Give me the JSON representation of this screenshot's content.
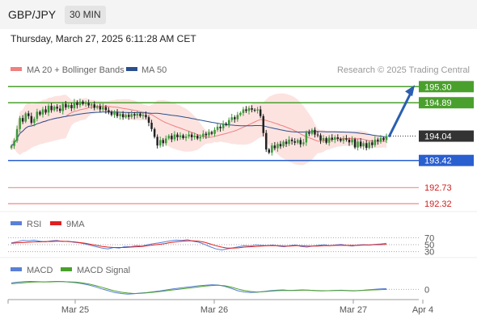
{
  "header": {
    "symbol": "GBP/JPY",
    "timeframe": "30 MIN"
  },
  "datetime": "Thursday, March 27, 2025 6:11:28 AM CET",
  "legend": {
    "ma20": {
      "label": "MA 20 + Bollinger Bands",
      "color": "#f08080"
    },
    "ma50": {
      "label": "MA 50",
      "color": "#2a4f8f"
    },
    "credit": "Research © 2025 Trading Central"
  },
  "rsi_legend": {
    "rsi": {
      "label": "RSI",
      "color": "#5a7fd6"
    },
    "ma9": {
      "label": "9MA",
      "color": "#e02020"
    }
  },
  "macd_legend": {
    "macd": {
      "label": "MACD",
      "color": "#5a7fd6"
    },
    "signal": {
      "label": "MACD Signal",
      "color": "#4aa02c"
    }
  },
  "chart_data": {
    "type": "candlestick",
    "price_range": [
      192.2,
      195.45
    ],
    "levels": [
      {
        "value": 195.3,
        "label": "195.30",
        "kind": "resistance",
        "color": "#4aa02c"
      },
      {
        "value": 194.89,
        "label": "194.89",
        "kind": "resistance",
        "color": "#4aa02c"
      },
      {
        "value": 194.04,
        "label": "194.04",
        "kind": "last",
        "color": "#333333"
      },
      {
        "value": 193.42,
        "label": "193.42",
        "kind": "pivot",
        "color": "#2a5fd0"
      },
      {
        "value": 192.73,
        "label": "192.73",
        "kind": "support",
        "color": "#e03030"
      },
      {
        "value": 192.32,
        "label": "192.32",
        "kind": "support",
        "color": "#e03030"
      }
    ],
    "target_arrow": {
      "from": 194.04,
      "to": 195.3,
      "color": "#2a5fb0"
    },
    "candles_close": [
      193.79,
      193.92,
      194.22,
      194.5,
      194.41,
      194.62,
      194.55,
      194.38,
      194.48,
      194.66,
      194.59,
      194.72,
      194.64,
      194.81,
      194.7,
      194.79,
      194.74,
      194.68,
      194.86,
      194.77,
      194.83,
      194.75,
      194.9,
      194.83,
      194.92,
      194.86,
      194.88,
      194.82,
      194.85,
      194.76,
      194.8,
      194.72,
      194.78,
      194.7,
      194.66,
      194.58,
      194.64,
      194.55,
      194.6,
      194.52,
      194.58,
      194.53,
      194.6,
      194.56,
      194.61,
      194.55,
      194.58,
      194.52,
      194.38,
      194.22,
      194.02,
      193.8,
      193.94,
      193.86,
      193.98,
      194.05,
      193.96,
      194.08,
      194.01,
      194.06,
      193.99,
      194.03,
      194.08,
      194.01,
      194.05,
      193.98,
      194.02,
      194.1,
      194.06,
      194.14,
      194.1,
      194.2,
      194.28,
      194.24,
      194.36,
      194.33,
      194.45,
      194.52,
      194.47,
      194.58,
      194.63,
      194.72,
      194.68,
      194.75,
      194.71,
      194.69,
      194.72,
      194.55,
      194.12,
      193.7,
      193.62,
      193.8,
      193.73,
      193.84,
      193.78,
      193.9,
      193.84,
      193.95,
      193.91,
      193.87,
      193.94,
      193.83,
      193.88,
      194.13,
      194.1,
      194.2,
      194.08,
      194.06,
      193.93,
      193.99,
      193.87,
      194.0,
      193.95,
      194.01,
      193.97,
      193.92,
      193.98,
      193.95,
      193.88,
      193.96,
      193.75,
      193.9,
      193.78,
      193.86,
      193.74,
      193.88,
      193.81,
      193.95,
      193.91,
      193.99,
      193.94,
      194.04
    ],
    "x_ticks": [
      {
        "label": "Mar 25",
        "index": 20
      },
      {
        "label": "Mar 26",
        "index": 64
      },
      {
        "label": "Mar 27",
        "index": 108
      },
      {
        "label": "Apr 4",
        "index": 130
      }
    ],
    "rsi": {
      "levels": [
        70,
        50,
        30
      ],
      "range": [
        20,
        80
      ],
      "rsi_values": [
        55,
        58,
        62,
        61,
        63,
        60,
        58,
        61,
        62,
        59,
        60,
        57,
        55,
        52,
        48,
        44,
        40,
        38,
        42,
        40,
        45,
        44,
        47,
        46,
        50,
        53,
        55,
        58,
        61,
        63,
        62,
        64,
        60,
        57,
        51,
        44,
        38,
        35,
        38,
        41,
        44,
        47,
        46,
        49,
        48,
        47,
        49,
        46,
        44,
        47,
        49,
        45,
        43,
        46,
        48,
        50,
        47,
        49,
        51,
        48,
        46,
        49,
        50,
        49,
        51,
        52,
        54
      ],
      "ma9_values": [
        54,
        55,
        56,
        57,
        58,
        58,
        59,
        59,
        60,
        60,
        59,
        58,
        56,
        54,
        51,
        48,
        45,
        43,
        42,
        42,
        42,
        43,
        44,
        45,
        47,
        49,
        51,
        53,
        56,
        58,
        60,
        61,
        61,
        60,
        57,
        52,
        47,
        43,
        40,
        40,
        41,
        43,
        44,
        45,
        46,
        47,
        47,
        47,
        46,
        46,
        47,
        47,
        46,
        46,
        46,
        47,
        47,
        48,
        48,
        48,
        48,
        48,
        49,
        49,
        50,
        50,
        51
      ]
    },
    "macd": {
      "levels": [
        0
      ],
      "macd_values": [
        0.25,
        0.28,
        0.3,
        0.31,
        0.3,
        0.29,
        0.3,
        0.31,
        0.3,
        0.28,
        0.26,
        0.22,
        0.17,
        0.1,
        0.02,
        -0.05,
        -0.12,
        -0.16,
        -0.18,
        -0.17,
        -0.14,
        -0.12,
        -0.09,
        -0.06,
        -0.02,
        0.02,
        0.05,
        0.08,
        0.11,
        0.14,
        0.16,
        0.18,
        0.17,
        0.12,
        0.04,
        -0.05,
        -0.1,
        -0.12,
        -0.11,
        -0.08,
        -0.05,
        -0.03,
        -0.02,
        -0.04,
        -0.03,
        -0.02,
        -0.03,
        -0.05,
        -0.06,
        -0.05,
        -0.04,
        -0.03,
        -0.05,
        -0.06,
        -0.04,
        -0.02,
        0.0,
        0.02,
        0.03
      ],
      "signal_values": [
        0.22,
        0.24,
        0.26,
        0.28,
        0.29,
        0.29,
        0.29,
        0.3,
        0.3,
        0.29,
        0.28,
        0.25,
        0.21,
        0.15,
        0.08,
        0.01,
        -0.06,
        -0.11,
        -0.14,
        -0.16,
        -0.15,
        -0.13,
        -0.11,
        -0.08,
        -0.05,
        -0.02,
        0.01,
        0.04,
        0.07,
        0.1,
        0.13,
        0.15,
        0.16,
        0.14,
        0.09,
        0.02,
        -0.04,
        -0.08,
        -0.1,
        -0.09,
        -0.07,
        -0.05,
        -0.04,
        -0.04,
        -0.04,
        -0.03,
        -0.03,
        -0.04,
        -0.05,
        -0.05,
        -0.04,
        -0.04,
        -0.04,
        -0.05,
        -0.04,
        -0.03,
        -0.02,
        -0.01,
        0.0
      ]
    }
  }
}
